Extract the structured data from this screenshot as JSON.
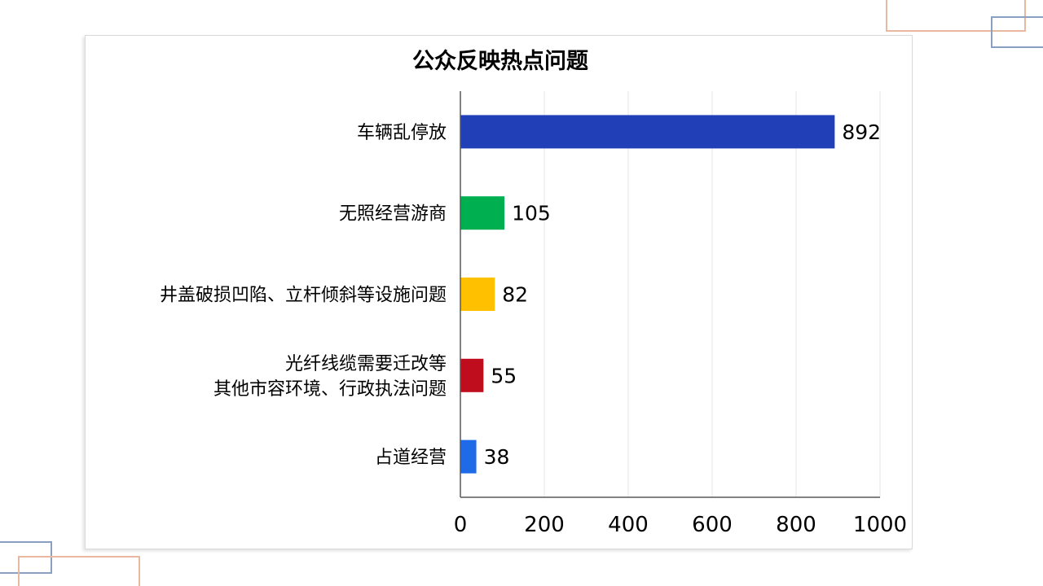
{
  "chart_data": {
    "type": "bar",
    "orientation": "horizontal",
    "title": "公众反映热点问题",
    "categories": [
      [
        "车辆乱停放"
      ],
      [
        "无照经营游商"
      ],
      [
        "井盖破损凹陷、立杆倾斜等设施问题"
      ],
      [
        "光纤线缆需要迁改等",
        "其他市容环境、行政执法问题"
      ],
      [
        "占道经营"
      ]
    ],
    "values": [
      892,
      105,
      82,
      55,
      38
    ],
    "value_labels": [
      "892",
      "105",
      "82",
      "55",
      "38"
    ],
    "colors": [
      "#2140b8",
      "#00b050",
      "#ffc000",
      "#c00d1e",
      "#1f6ae6"
    ],
    "xlim": [
      0,
      1000
    ],
    "xticks": [
      0,
      200,
      400,
      600,
      800,
      1000
    ],
    "xtick_labels": [
      "0",
      "200",
      "400",
      "600",
      "800",
      "1000"
    ],
    "grid": "vertical",
    "legend": "none"
  }
}
